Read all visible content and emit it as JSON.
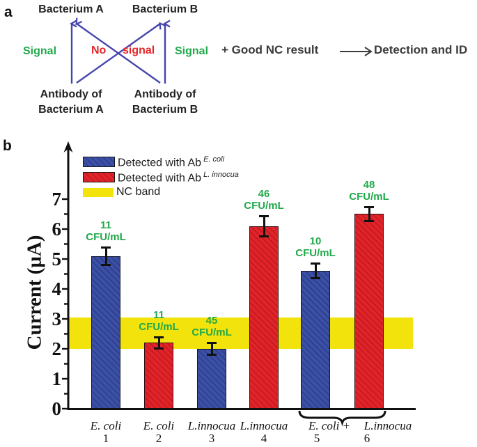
{
  "panel_a": {
    "label": "a",
    "bacterium_a": "Bacterium A",
    "bacterium_b": "Bacterium B",
    "signal_left": "Signal",
    "no_word": "No",
    "signal_crossed_word": "signal",
    "signal_right": "Signal",
    "antibody_a_line1": "Antibody of",
    "antibody_a_line2": "Bacterium A",
    "antibody_b_line1": "Antibody of",
    "antibody_b_line2": "Bacterium B",
    "good_nc_text": "+ Good NC result",
    "detection_text": "Detection and ID",
    "colors": {
      "signal_green": "#21A94B",
      "no_signal_red": "#E62529",
      "arrow_blue": "#4545AC"
    }
  },
  "panel_b": {
    "label": "b",
    "legend": [
      {
        "swatch": "blue-hatch",
        "text": "Detected with Ab",
        "sup": "E. coli"
      },
      {
        "swatch": "red-hatch",
        "text": "Detected with Ab",
        "sup": "L. innocua"
      },
      {
        "swatch": "yellow",
        "text": "NC band",
        "sup": ""
      }
    ]
  },
  "chart_data": {
    "type": "bar",
    "title": "",
    "xlabel": "",
    "ylabel": "Current (μA)",
    "ylim": [
      0,
      7.8
    ],
    "yticks": [
      0,
      1,
      2,
      3,
      4,
      5,
      6,
      7
    ],
    "grid": false,
    "legend_position": "upper-left",
    "categories": [
      "E. coli",
      "E. coli",
      "L.innocua",
      "L.innocua",
      "E. coli +",
      "L.innocua"
    ],
    "category_numbers": [
      "1",
      "2",
      "3",
      "4",
      "5",
      "6"
    ],
    "series": [
      {
        "name": "Detected with Ab E. coli",
        "color_key": "blue",
        "bar_indices": [
          0,
          2,
          4
        ]
      },
      {
        "name": "Detected with Ab L. innocua",
        "color_key": "red",
        "bar_indices": [
          1,
          3,
          5
        ]
      }
    ],
    "bar_color_keys": [
      "blue",
      "red",
      "blue",
      "red",
      "blue",
      "red"
    ],
    "values": [
      5.1,
      2.2,
      2.0,
      6.1,
      4.6,
      6.5
    ],
    "errors": [
      0.3,
      0.2,
      0.2,
      0.35,
      0.25,
      0.25
    ],
    "annotations": [
      {
        "value": "11",
        "unit": "CFU/mL"
      },
      {
        "value": "11",
        "unit": "CFU/mL"
      },
      {
        "value": "45",
        "unit": "CFU/mL"
      },
      {
        "value": "46",
        "unit": "CFU/mL"
      },
      {
        "value": "10",
        "unit": "CFU/mL"
      },
      {
        "value": "48",
        "unit": "CFU/mL"
      }
    ],
    "nc_band": {
      "ymin": 2.0,
      "ymax": 3.05,
      "label": "NC band"
    },
    "brace_group": {
      "bar_indices": [
        4,
        5
      ]
    },
    "colors": {
      "blue": "#3C50A6",
      "blue_hatch": "#2E4090",
      "red": "#E2232A",
      "red_hatch": "#C41C21",
      "yellow": "#F2E30C",
      "annotation_green": "#21A94B",
      "axis": "#111111"
    }
  }
}
